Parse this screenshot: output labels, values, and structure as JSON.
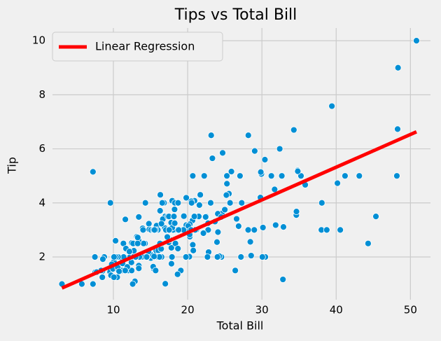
{
  "chart_data": {
    "type": "scatter",
    "title": "Tips vs Total Bill",
    "xlabel": "Total Bill",
    "ylabel": "Tip",
    "x": [
      16.99,
      10.34,
      21.01,
      23.68,
      24.59,
      25.29,
      8.77,
      26.88,
      15.04,
      14.78,
      10.27,
      35.26,
      15.42,
      18.43,
      14.83,
      21.58,
      10.33,
      16.29,
      16.97,
      20.65,
      17.92,
      20.29,
      15.77,
      39.42,
      19.82,
      17.81,
      13.37,
      12.69,
      21.7,
      19.65,
      9.55,
      18.35,
      15.06,
      20.69,
      17.78,
      24.06,
      16.31,
      16.93,
      18.69,
      31.27,
      16.04,
      17.46,
      13.94,
      9.68,
      30.4,
      18.29,
      22.23,
      32.4,
      28.55,
      18.04,
      12.54,
      10.29,
      34.81,
      9.94,
      25.56,
      19.49,
      38.01,
      26.41,
      11.24,
      48.27,
      20.29,
      13.81,
      11.02,
      18.29,
      17.59,
      20.08,
      16.45,
      3.07,
      20.23,
      15.01,
      12.02,
      17.07,
      26.86,
      25.28,
      14.73,
      10.51,
      17.92,
      27.2,
      22.76,
      17.29,
      19.44,
      16.66,
      10.07,
      32.68,
      15.98,
      34.83,
      13.03,
      18.28,
      24.71,
      21.16,
      28.97,
      22.49,
      5.75,
      16.32,
      22.75,
      40.17,
      27.28,
      12.03,
      21.01,
      12.46,
      11.35,
      15.38,
      44.3,
      22.42,
      20.92,
      15.36,
      20.49,
      25.21,
      18.24,
      14.31,
      14.0,
      7.25,
      38.07,
      23.95,
      25.71,
      17.31,
      29.93,
      10.65,
      12.43,
      24.08,
      11.69,
      13.42,
      14.26,
      15.95,
      12.48,
      29.8,
      8.52,
      14.52,
      11.38,
      22.82,
      19.08,
      20.27,
      11.17,
      12.26,
      18.26,
      8.51,
      10.33,
      14.15,
      16.0,
      13.16,
      17.47,
      34.3,
      41.19,
      27.05,
      16.43,
      8.35,
      18.64,
      11.87,
      9.78,
      7.51,
      14.07,
      13.13,
      17.26,
      24.55,
      19.77,
      29.85,
      48.17,
      25.0,
      13.39,
      16.49,
      21.5,
      12.66,
      16.21,
      13.81,
      17.51,
      24.52,
      20.76,
      31.71,
      10.59,
      10.63,
      50.81,
      15.81,
      7.25,
      31.85,
      16.82,
      32.9,
      17.89,
      14.48,
      9.6,
      34.63,
      34.65,
      23.33,
      45.35,
      23.17,
      40.55,
      20.69,
      20.9,
      30.46,
      18.15,
      23.1,
      15.69,
      19.81,
      28.44,
      15.48,
      16.58,
      7.56,
      10.34,
      43.11,
      13.0,
      13.51,
      18.71,
      12.74,
      13.0,
      16.4,
      20.53,
      16.47,
      26.59,
      38.73,
      24.27,
      12.76,
      30.06,
      25.89,
      48.33,
      13.27,
      28.17,
      12.9,
      28.15,
      11.59,
      7.74,
      30.14,
      12.16,
      13.42,
      8.58,
      15.98,
      13.42,
      16.27,
      10.09,
      20.45,
      13.28,
      22.12,
      24.01,
      15.69,
      11.61,
      10.77,
      15.53,
      10.07,
      12.6,
      32.83,
      35.83,
      29.03,
      27.18,
      22.67,
      17.82,
      18.78
    ],
    "values": [
      1.01,
      1.66,
      3.5,
      3.31,
      3.61,
      4.71,
      2.0,
      3.12,
      1.96,
      3.23,
      1.71,
      5.0,
      1.57,
      3.0,
      3.02,
      3.92,
      1.67,
      3.71,
      3.5,
      3.35,
      4.08,
      2.75,
      2.23,
      7.58,
      3.18,
      2.34,
      2.0,
      2.0,
      4.3,
      3.0,
      1.45,
      2.5,
      3.0,
      2.45,
      3.27,
      3.6,
      2.0,
      3.07,
      2.31,
      5.0,
      2.24,
      2.54,
      3.06,
      1.32,
      5.6,
      3.0,
      5.0,
      6.0,
      2.05,
      3.0,
      2.5,
      2.6,
      5.2,
      1.56,
      4.34,
      3.51,
      3.0,
      1.5,
      1.76,
      6.73,
      3.21,
      2.0,
      1.98,
      3.76,
      2.64,
      3.15,
      2.47,
      1.0,
      2.01,
      2.09,
      1.97,
      3.0,
      3.14,
      5.0,
      2.2,
      1.25,
      3.08,
      4.0,
      3.0,
      2.71,
      3.0,
      3.4,
      1.83,
      5.0,
      2.03,
      5.17,
      2.0,
      4.0,
      5.85,
      3.0,
      3.0,
      3.5,
      1.0,
      4.3,
      3.25,
      4.73,
      4.0,
      1.5,
      3.0,
      1.5,
      2.5,
      3.0,
      2.5,
      3.48,
      4.08,
      1.64,
      4.06,
      4.29,
      3.76,
      4.0,
      3.0,
      1.0,
      4.0,
      2.55,
      4.0,
      3.5,
      5.07,
      1.5,
      1.8,
      2.92,
      2.31,
      1.68,
      2.5,
      2.0,
      2.52,
      4.2,
      1.48,
      2.0,
      2.0,
      2.18,
      1.5,
      2.83,
      1.5,
      2.0,
      3.25,
      1.25,
      2.0,
      2.0,
      2.0,
      2.75,
      3.5,
      6.7,
      5.0,
      5.0,
      2.3,
      1.5,
      1.36,
      1.63,
      1.73,
      2.0,
      2.5,
      2.0,
      2.74,
      2.0,
      2.0,
      5.14,
      5.0,
      3.75,
      2.61,
      2.0,
      3.5,
      2.5,
      2.0,
      2.0,
      3.0,
      3.48,
      2.24,
      4.5,
      1.61,
      2.0,
      10.0,
      3.16,
      5.15,
      3.18,
      4.0,
      3.11,
      2.0,
      2.0,
      4.0,
      3.55,
      3.68,
      5.65,
      3.5,
      6.5,
      3.0,
      5.0,
      3.5,
      2.0,
      3.5,
      4.0,
      1.5,
      4.19,
      2.56,
      2.02,
      4.0,
      1.44,
      2.0,
      5.0,
      2.0,
      2.0,
      4.0,
      2.01,
      2.0,
      2.5,
      4.0,
      3.23,
      3.41,
      3.0,
      2.03,
      2.23,
      2.0,
      5.16,
      9.0,
      2.5,
      6.5,
      1.1,
      3.0,
      1.5,
      1.44,
      3.09,
      2.2,
      3.48,
      1.92,
      3.0,
      1.58,
      2.5,
      2.0,
      3.0,
      2.72,
      2.88,
      2.0,
      3.0,
      3.39,
      1.47,
      3.0,
      1.25,
      1.0,
      1.17,
      4.67,
      5.92,
      2.0,
      2.0,
      1.75,
      3.0
    ],
    "color": "#008fd5",
    "regression": {
      "name": "Linear Regression",
      "color": "#ff0000",
      "x": [
        3.07,
        50.81
      ],
      "y": [
        0.85,
        6.63
      ]
    },
    "xlim": [
      1.8,
      52.7
    ],
    "ylim": [
      0.42,
      10.47
    ],
    "xticks": [
      10,
      20,
      30,
      40,
      50
    ],
    "yticks": [
      2,
      4,
      6,
      8,
      10
    ],
    "grid": true,
    "legend": "upper left"
  }
}
